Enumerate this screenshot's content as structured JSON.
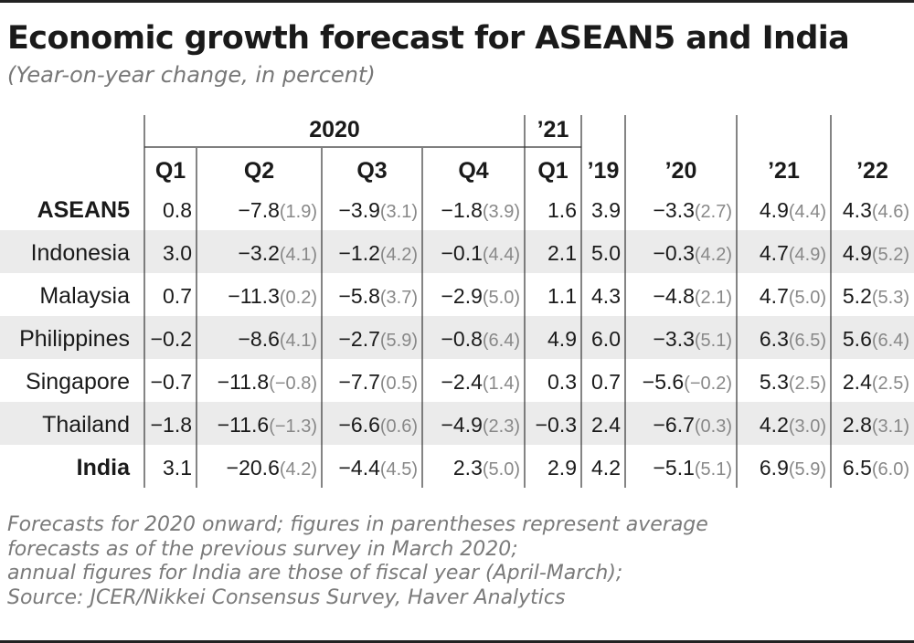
{
  "title": "Economic growth forecast for ASEAN5 and India",
  "subtitle": "(Year-on-year change, in percent)",
  "chart_data": {
    "type": "table",
    "group_headers": [
      "2020",
      "’21"
    ],
    "columns": [
      "Q1",
      "Q2",
      "Q3",
      "Q4",
      "Q1",
      "’19",
      "’20",
      "’21",
      "’22"
    ],
    "rows": [
      {
        "name": "ASEAN5",
        "bold": true,
        "cells": [
          {
            "v": "0.8"
          },
          {
            "v": "−7.8",
            "p": "(1.9)"
          },
          {
            "v": "−3.9",
            "p": "(3.1)"
          },
          {
            "v": "−1.8",
            "p": "(3.9)"
          },
          {
            "v": "1.6"
          },
          {
            "v": "3.9"
          },
          {
            "v": "−3.3",
            "p": "(2.7)"
          },
          {
            "v": "4.9",
            "p": "(4.4)"
          },
          {
            "v": "4.3",
            "p": "(4.6)"
          }
        ]
      },
      {
        "name": "Indonesia",
        "bold": false,
        "cells": [
          {
            "v": "3.0"
          },
          {
            "v": "−3.2",
            "p": "(4.1)"
          },
          {
            "v": "−1.2",
            "p": "(4.2)"
          },
          {
            "v": "−0.1",
            "p": "(4.4)"
          },
          {
            "v": "2.1"
          },
          {
            "v": "5.0"
          },
          {
            "v": "−0.3",
            "p": "(4.2)"
          },
          {
            "v": "4.7",
            "p": "(4.9)"
          },
          {
            "v": "4.9",
            "p": "(5.2)"
          }
        ]
      },
      {
        "name": "Malaysia",
        "bold": false,
        "cells": [
          {
            "v": "0.7"
          },
          {
            "v": "−11.3",
            "p": "(0.2)"
          },
          {
            "v": "−5.8",
            "p": "(3.7)"
          },
          {
            "v": "−2.9",
            "p": "(5.0)"
          },
          {
            "v": "1.1"
          },
          {
            "v": "4.3"
          },
          {
            "v": "−4.8",
            "p": "(2.1)"
          },
          {
            "v": "4.7",
            "p": "(5.0)"
          },
          {
            "v": "5.2",
            "p": "(5.3)"
          }
        ]
      },
      {
        "name": "Philippines",
        "bold": false,
        "cells": [
          {
            "v": "−0.2"
          },
          {
            "v": "−8.6",
            "p": "(4.1)"
          },
          {
            "v": "−2.7",
            "p": "(5.9)"
          },
          {
            "v": "−0.8",
            "p": "(6.4)"
          },
          {
            "v": "4.9"
          },
          {
            "v": "6.0"
          },
          {
            "v": "−3.3",
            "p": "(5.1)"
          },
          {
            "v": "6.3",
            "p": "(6.5)"
          },
          {
            "v": "5.6",
            "p": "(6.4)"
          }
        ]
      },
      {
        "name": "Singapore",
        "bold": false,
        "cells": [
          {
            "v": "−0.7"
          },
          {
            "v": "−11.8",
            "p": "(−0.8)"
          },
          {
            "v": "−7.7",
            "p": "(0.5)"
          },
          {
            "v": "−2.4",
            "p": "(1.4)"
          },
          {
            "v": "0.3"
          },
          {
            "v": "0.7"
          },
          {
            "v": "−5.6",
            "p": "(−0.2)"
          },
          {
            "v": "5.3",
            "p": "(2.5)"
          },
          {
            "v": "2.4",
            "p": "(2.5)"
          }
        ]
      },
      {
        "name": "Thailand",
        "bold": false,
        "cells": [
          {
            "v": "−1.8"
          },
          {
            "v": "−11.6",
            "p": "(−1.3)"
          },
          {
            "v": "−6.6",
            "p": "(0.6)"
          },
          {
            "v": "−4.9",
            "p": "(2.3)"
          },
          {
            "v": "−0.3"
          },
          {
            "v": "2.4"
          },
          {
            "v": "−6.7",
            "p": "(0.3)"
          },
          {
            "v": "4.2",
            "p": "(3.0)"
          },
          {
            "v": "2.8",
            "p": "(3.1)"
          }
        ]
      },
      {
        "name": "India",
        "bold": true,
        "cells": [
          {
            "v": "3.1"
          },
          {
            "v": "−20.6",
            "p": "(4.2)"
          },
          {
            "v": "−4.4",
            "p": "(4.5)"
          },
          {
            "v": "2.3",
            "p": "(5.0)"
          },
          {
            "v": "2.9"
          },
          {
            "v": "4.2"
          },
          {
            "v": "−5.1",
            "p": "(5.1)"
          },
          {
            "v": "6.9",
            "p": "(5.9)"
          },
          {
            "v": "6.5",
            "p": "(6.0)"
          }
        ]
      }
    ]
  },
  "notes": [
    "Forecasts for 2020 onward; figures in parentheses represent average",
    "forecasts as of the previous survey in March 2020;",
    "annual figures for India are those of fiscal year (April-March);",
    "Source: JCER/Nikkei Consensus Survey, Haver Analytics"
  ],
  "colors": {
    "text": "#1a1a1a",
    "muted": "#888888",
    "stripe": "#ebebeb",
    "rule": "#333333"
  }
}
